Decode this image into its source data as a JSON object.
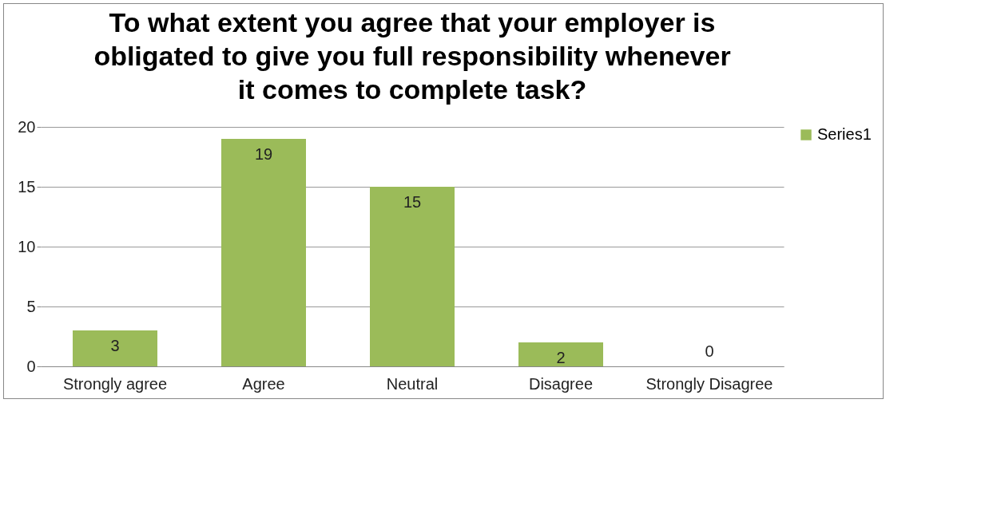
{
  "chart_data": {
    "type": "bar",
    "title": "To what extent you agree that your employer is obligated to give you full responsibility whenever it comes to complete task?",
    "categories": [
      "Strongly agree",
      "Agree",
      "Neutral",
      "Disagree",
      "Strongly Disagree"
    ],
    "series": [
      {
        "name": "Series1",
        "color": "#9bbb59",
        "values": [
          3,
          19,
          15,
          2,
          0
        ]
      }
    ],
    "ylim": [
      0,
      20
    ],
    "yticks": [
      0,
      5,
      10,
      15,
      20
    ],
    "grid": "y",
    "legend": "right",
    "data_labels": true
  }
}
